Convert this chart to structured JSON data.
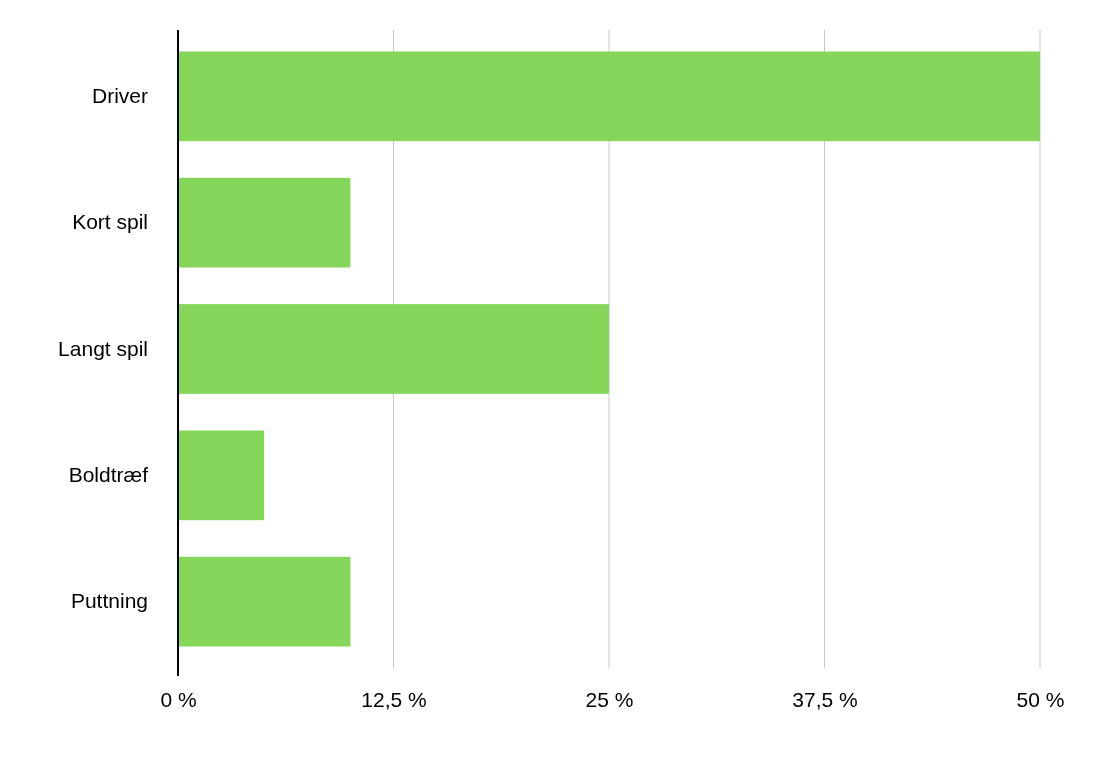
{
  "chart_data": {
    "type": "bar",
    "orientation": "horizontal",
    "categories": [
      "Driver",
      "Kort spil",
      "Langt spil",
      "Boldtræf",
      "Puttning"
    ],
    "values": [
      50,
      10,
      25,
      5,
      10
    ],
    "color": "#85d65b",
    "xlim": [
      0,
      50
    ],
    "xticks": [
      {
        "value": 0,
        "label": "0 %"
      },
      {
        "value": 12.5,
        "label": "12,5 %"
      },
      {
        "value": 25,
        "label": "25 %"
      },
      {
        "value": 37.5,
        "label": "37,5 %"
      },
      {
        "value": 50,
        "label": "50 %"
      }
    ],
    "grid": "x"
  }
}
